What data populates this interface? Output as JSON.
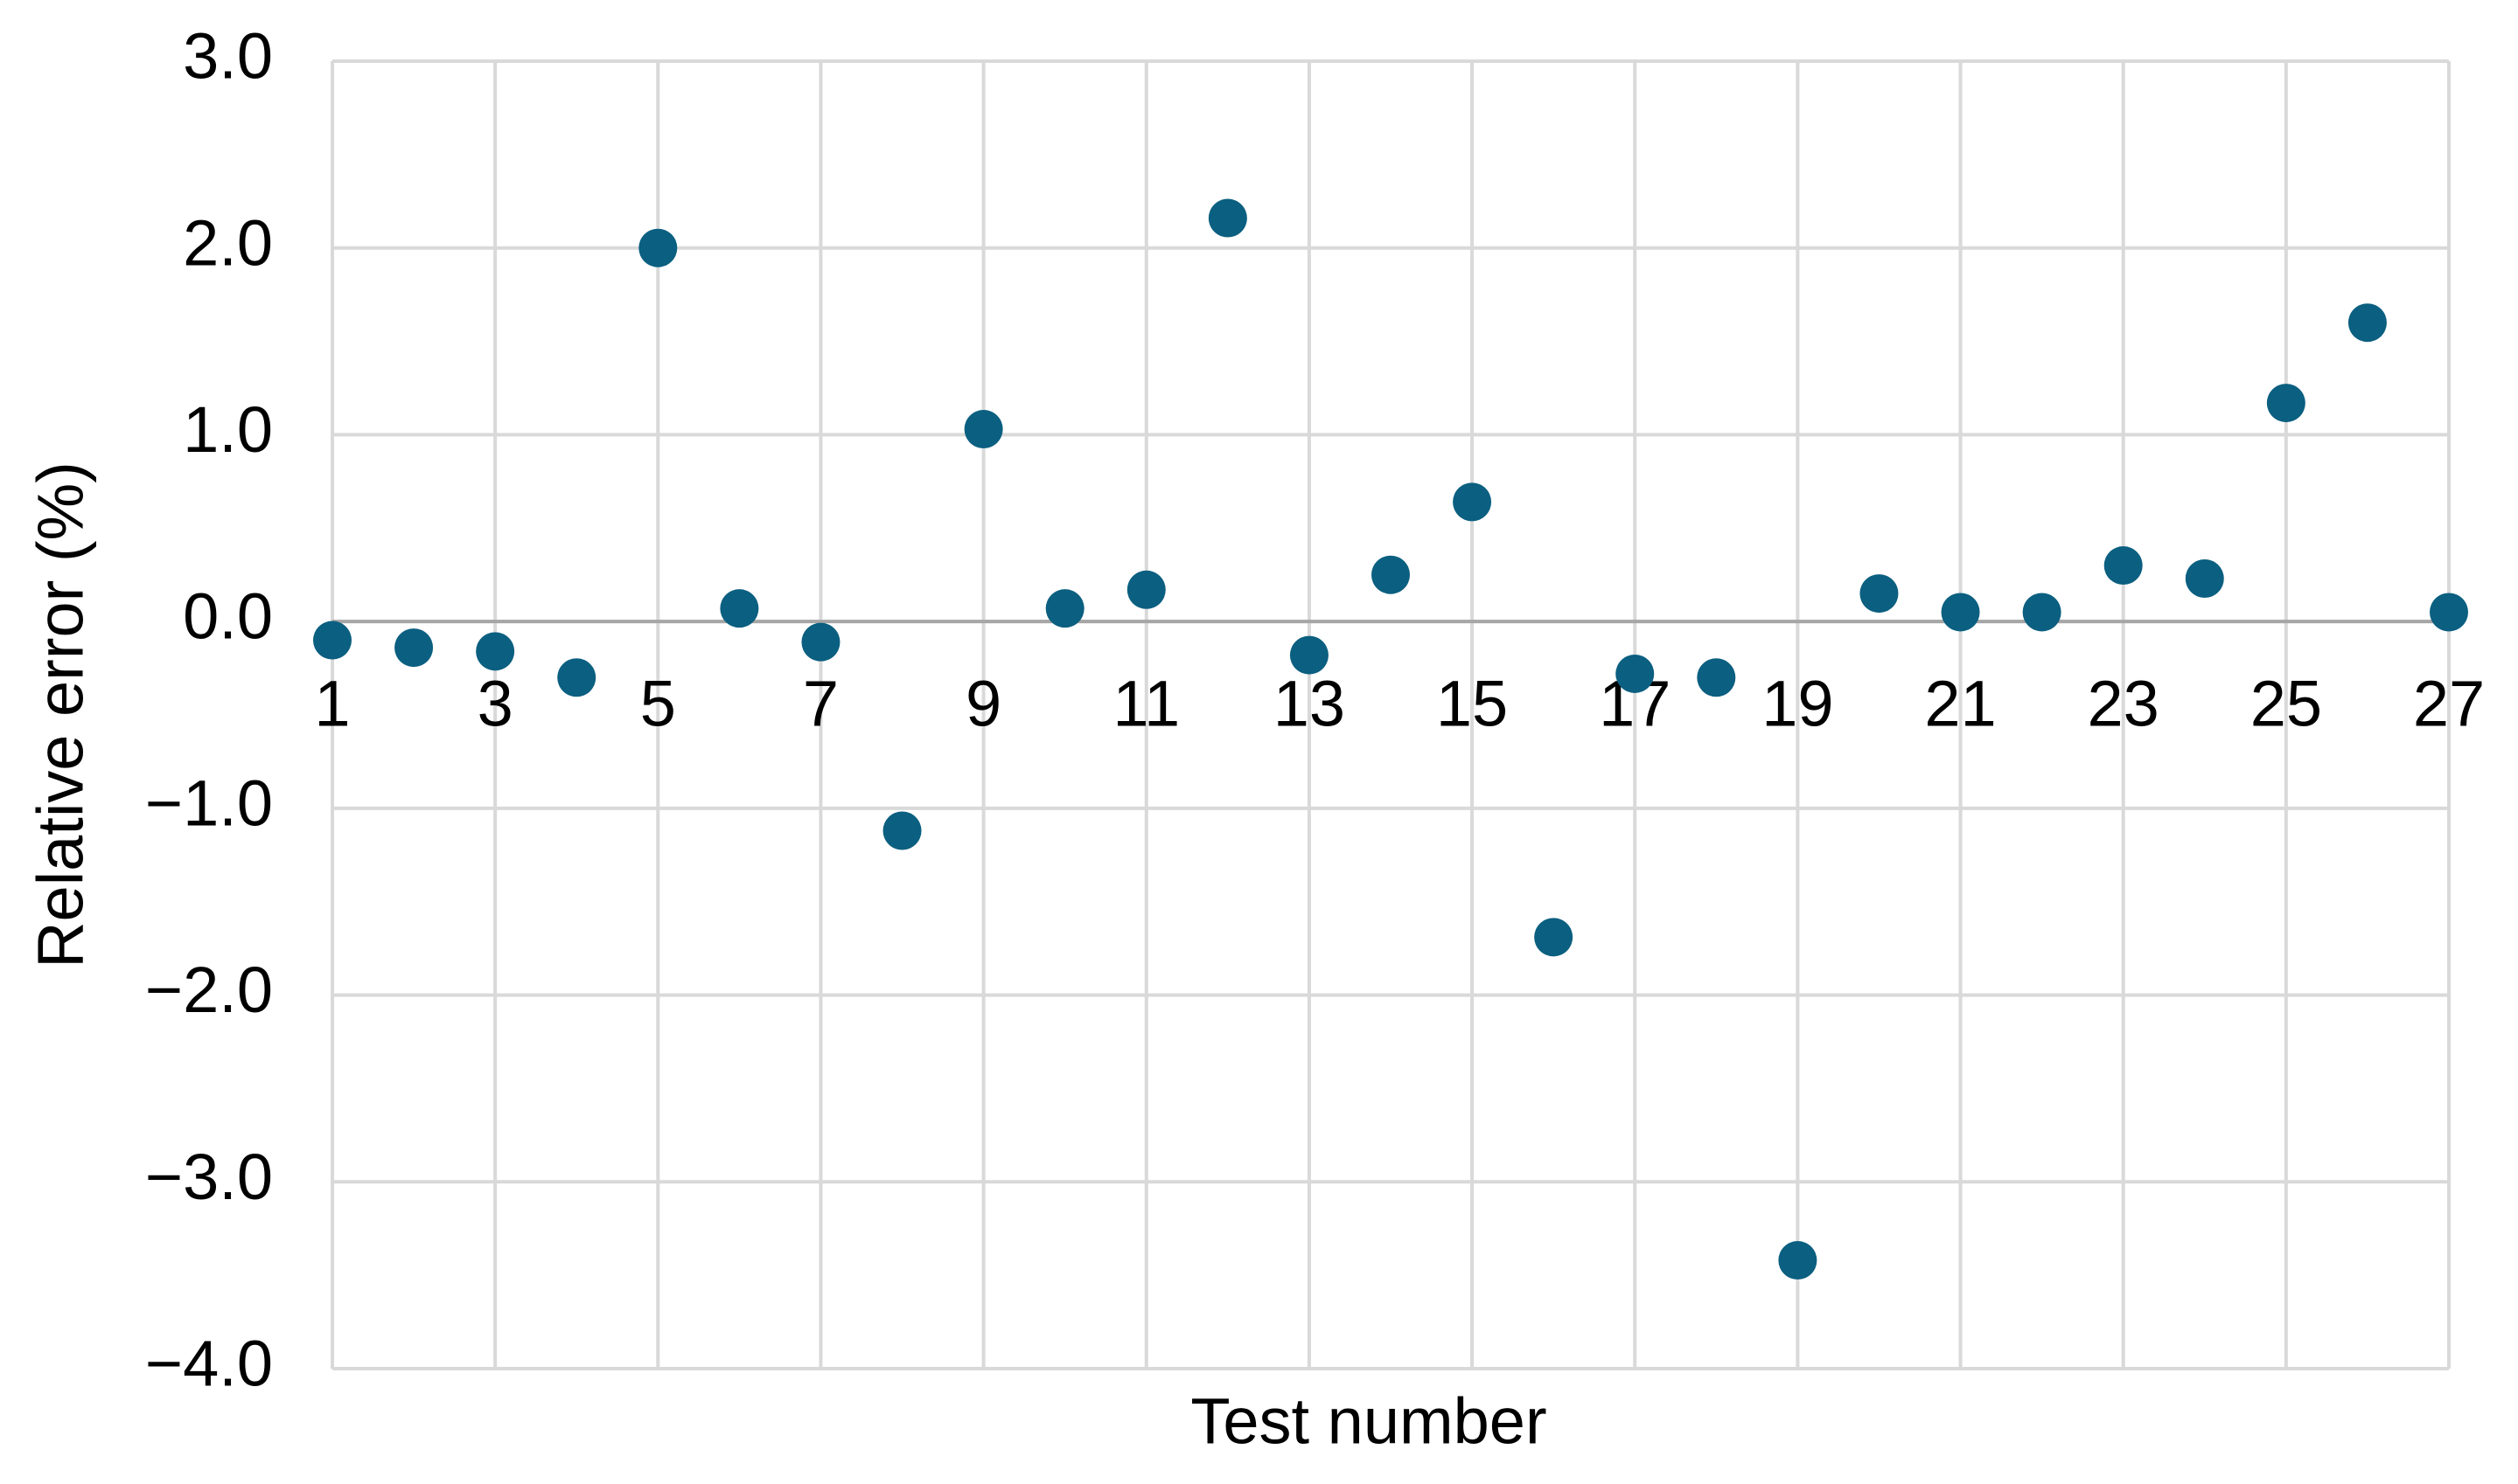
{
  "chart_data": {
    "type": "scatter",
    "x_label": "Test number",
    "y_label": "Relative error (%)",
    "x": [
      1,
      2,
      3,
      4,
      5,
      6,
      7,
      8,
      9,
      10,
      11,
      12,
      13,
      14,
      15,
      16,
      17,
      18,
      19,
      20,
      21,
      22,
      23,
      24,
      25,
      26,
      27
    ],
    "series": [
      {
        "color": "#0b5f80",
        "values": [
          -0.1,
          -0.14,
          -0.16,
          -0.3,
          2.0,
          0.07,
          -0.11,
          -1.12,
          1.03,
          0.07,
          0.17,
          2.16,
          -0.18,
          0.25,
          0.64,
          -1.69,
          -0.28,
          -0.3,
          -3.42,
          0.15,
          0.05,
          0.05,
          0.3,
          0.23,
          1.17,
          1.6,
          0.05
        ]
      }
    ],
    "xlim": [
      1,
      27
    ],
    "xticks": [
      1,
      3,
      5,
      7,
      9,
      11,
      13,
      15,
      17,
      19,
      21,
      23,
      25,
      27
    ],
    "ylim": [
      -4,
      3
    ],
    "yticks": [
      {
        "value": -4,
        "label": "−4.0"
      },
      {
        "value": -3,
        "label": "−3.0"
      },
      {
        "value": -2,
        "label": "−2.0"
      },
      {
        "value": -1,
        "label": "−1.0"
      },
      {
        "value": 0,
        "label": "0.0"
      },
      {
        "value": 1,
        "label": "1.0"
      },
      {
        "value": 2,
        "label": "2.0"
      },
      {
        "value": 3,
        "label": "3.0"
      }
    ],
    "grid": true
  }
}
